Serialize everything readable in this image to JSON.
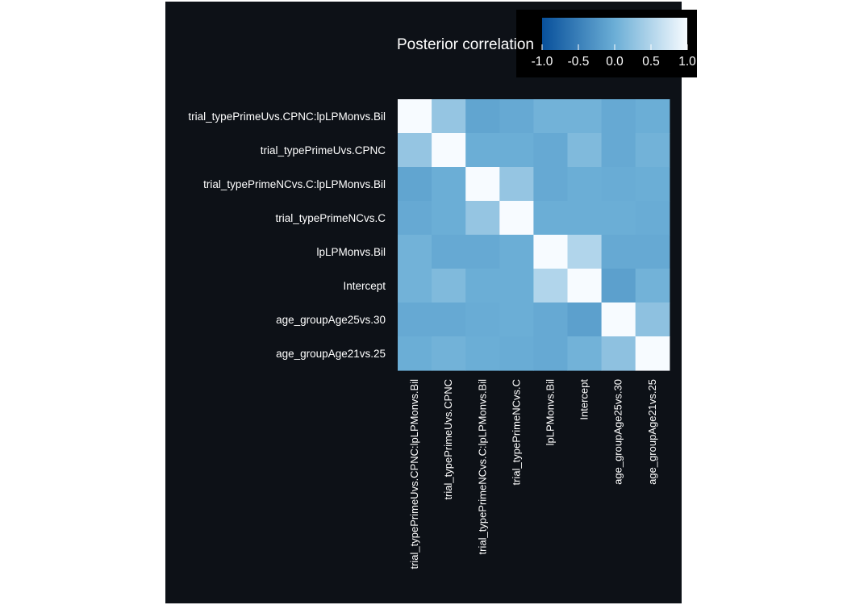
{
  "chart_data": {
    "type": "heatmap",
    "title": "",
    "xlabel": "",
    "ylabel": "",
    "row_labels": [
      "trial_typePrimeUvs.CPNC:lpLPMonvs.Bil",
      "trial_typePrimeUvs.CPNC",
      "trial_typePrimeNCvs.C:lpLPMonvs.Bil",
      "trial_typePrimeNCvs.C",
      "lpLPMonvs.Bil",
      "Intercept",
      "age_groupAge25vs.30",
      "age_groupAge21vs.25"
    ],
    "col_labels": [
      "trial_typePrimeUvs.CPNC:lpLPMonvs.Bil",
      "trial_typePrimeUvs.CPNC",
      "trial_typePrimeNCvs.C:lpLPMonvs.Bil",
      "trial_typePrimeNCvs.C",
      "lpLPMonvs.Bil",
      "Intercept",
      "age_groupAge25vs.30",
      "age_groupAge21vs.25"
    ],
    "values": [
      [
        1.0,
        0.3,
        -0.1,
        -0.05,
        0.05,
        0.05,
        -0.05,
        0.0
      ],
      [
        0.3,
        1.0,
        0.0,
        0.0,
        -0.05,
        0.15,
        -0.05,
        0.05
      ],
      [
        -0.1,
        0.0,
        1.0,
        0.3,
        -0.05,
        0.0,
        -0.02,
        0.0
      ],
      [
        -0.05,
        0.0,
        0.3,
        1.0,
        0.0,
        0.0,
        0.0,
        -0.02
      ],
      [
        0.05,
        -0.05,
        -0.05,
        0.0,
        1.0,
        0.5,
        -0.05,
        -0.05
      ],
      [
        0.05,
        0.15,
        0.0,
        0.0,
        0.5,
        1.0,
        -0.15,
        0.05
      ],
      [
        -0.05,
        -0.05,
        -0.02,
        0.0,
        -0.05,
        -0.15,
        1.0,
        0.25
      ],
      [
        0.0,
        0.05,
        0.0,
        -0.02,
        -0.05,
        0.05,
        0.25,
        1.0
      ]
    ],
    "color_scale": {
      "limits": [
        -1.0,
        1.0
      ],
      "low_color": "#08509b",
      "mid_color": "#6baed6",
      "high_color": "#f7fbff"
    },
    "legend": {
      "title": "Posterior correlation",
      "ticks": [
        "-1.0",
        "-0.5",
        "0.0",
        "0.5",
        "1.0"
      ],
      "placement": "top-right"
    },
    "colors": {
      "panel_background": "#0d1117",
      "legend_background": "#000000",
      "text": "#ffffff"
    }
  }
}
